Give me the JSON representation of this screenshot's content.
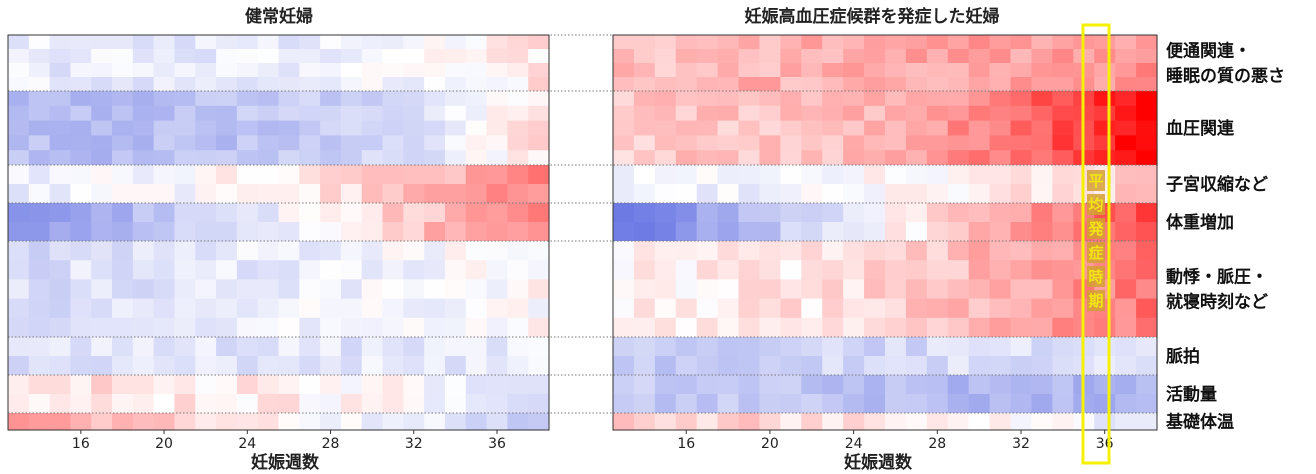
{
  "chart_data": {
    "type": "heatmap",
    "panels": [
      {
        "title": "健常妊婦",
        "xlabel": "妊娠週数"
      },
      {
        "title": "妊娠高血圧症候群を発症した妊婦",
        "xlabel": "妊娠週数"
      }
    ],
    "x_ticks": [
      "16",
      "20",
      "24",
      "28",
      "32",
      "36"
    ],
    "groups": [
      {
        "label_lines": [
          "便通関連・",
          "睡眠の質の悪さ"
        ]
      },
      {
        "label_lines": [
          "血圧関連"
        ]
      },
      {
        "label_lines": [
          "子宮収縮など"
        ]
      },
      {
        "label_lines": [
          "体重増加"
        ]
      },
      {
        "label_lines": [
          "動悸・脈圧・",
          "就寝時刻など"
        ]
      },
      {
        "label_lines": [
          "脈拍"
        ]
      },
      {
        "label_lines": [
          "活動量"
        ]
      },
      {
        "label_lines": [
          "基礎体温"
        ]
      }
    ],
    "onset_annotation": {
      "text": [
        "平",
        "均",
        "発",
        "症",
        "時",
        "期"
      ],
      "week": 36,
      "color": "#f5f000"
    },
    "colors": {
      "positive": "#ff0000",
      "negative": "#4455dd",
      "neutral": "#ffffff"
    }
  }
}
